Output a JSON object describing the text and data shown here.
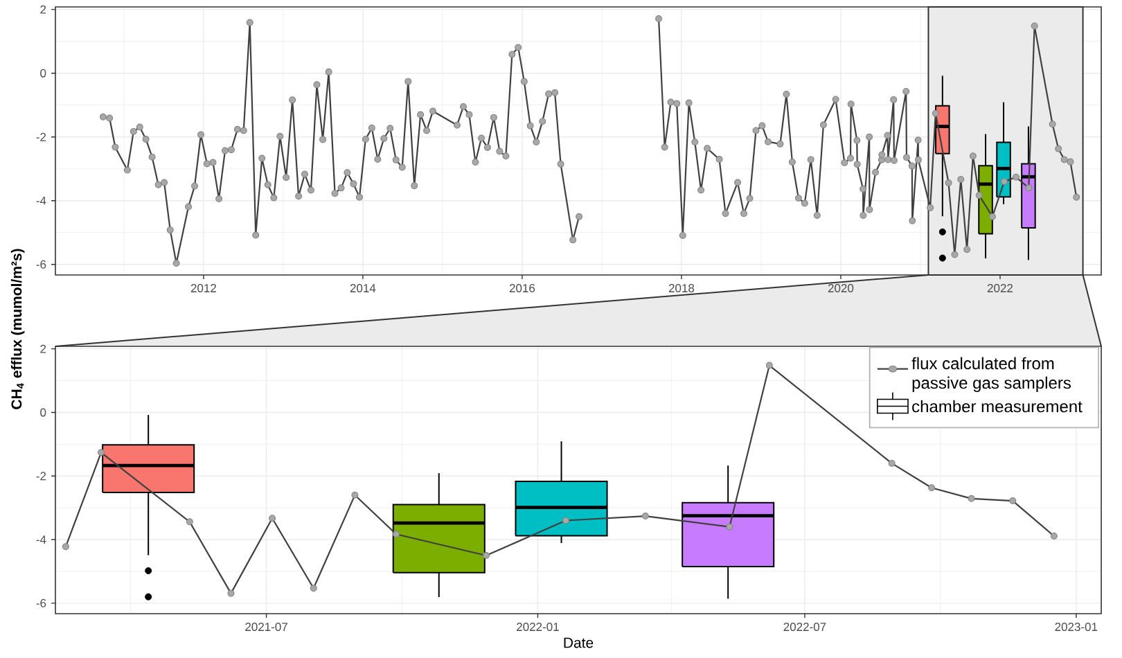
{
  "chart_data": [
    {
      "type": "line",
      "ylabel": "CH$_{4}$ efflux (mumol/m²s)",
      "xlim": [
        2010.14,
        2023.27
      ],
      "ylim": [
        -6.33,
        2.08
      ],
      "xticks": [
        2012,
        2014,
        2016,
        2018,
        2020,
        2022
      ],
      "yticks": [
        -6,
        -4,
        -2,
        0,
        2
      ],
      "grid": true,
      "marker": "circle",
      "bands": [
        {
          "axis": "x",
          "from": 2021.1,
          "to": 2023.04,
          "color": "#ebebeb"
        }
      ],
      "series": [
        {
          "color": "#404040",
          "x": [
            2010.739,
            2010.82,
            2010.891,
            2011.043,
            2011.121,
            2011.199,
            2011.276,
            2011.354,
            2011.432,
            2011.506,
            2011.581,
            2011.658,
            2011.81,
            2011.888,
            2011.966,
            2012.043,
            2012.118,
            2012.193,
            2012.27,
            2012.348,
            2012.425,
            2012.503,
            2012.581,
            2012.655,
            2012.733,
            2012.807,
            2012.882,
            2012.96,
            2013.037,
            2013.115,
            2013.193,
            2013.27,
            2013.348,
            2013.422,
            2013.497,
            2013.571,
            2013.649,
            2013.727,
            2013.804,
            2013.882,
            2013.957,
            2014.034,
            2014.112,
            2014.186,
            2014.264,
            2014.342,
            2014.416,
            2014.494,
            2014.568,
            2014.646,
            2014.724,
            2014.801,
            2014.879,
            2015.183,
            2015.261,
            2015.335,
            2015.413,
            2015.488,
            2015.565,
            2015.643,
            2015.717,
            2015.795,
            2015.873,
            2015.95,
            2016.025,
            2016.102,
            2016.177,
            2016.255,
            2016.332,
            2016.41,
            2016.484,
            2016.637,
            2016.714,
            2017.2,
            2017.714,
            2017.789,
            2017.866,
            2017.941,
            2018.016,
            2018.093,
            2018.168,
            2018.245,
            2018.323,
            2018.475,
            2018.553,
            2018.705,
            2018.783,
            2018.857,
            2018.935,
            2019.012,
            2019.087,
            2019.239,
            2019.317,
            2019.391,
            2019.469,
            2019.547,
            2019.624,
            2019.703,
            2019.782,
            2019.936,
            2020.047,
            2020.122,
            2020.128,
            2020.203,
            2020.206,
            2020.279,
            2020.282,
            2020.358,
            2020.36,
            2020.436,
            2020.512,
            2020.517,
            2020.587,
            2020.593,
            2020.663,
            2020.669,
            2020.82,
            2020.826,
            2020.895,
            2020.898,
            2020.971,
            2020.974,
            2021.123,
            2021.19,
            2021.353,
            2021.43,
            2021.507,
            2021.584,
            2021.66,
            2021.737,
            2021.904,
            2022.052,
            2022.2,
            2022.359,
            2022.432,
            2022.658,
            2022.732,
            2022.806,
            2022.882,
            2022.959
          ],
          "values": [
            -1.37,
            -1.41,
            -2.32,
            -3.04,
            -1.83,
            -1.69,
            -2.07,
            -2.63,
            -3.5,
            -3.43,
            -4.92,
            -5.96,
            -4.19,
            -3.54,
            -1.93,
            -2.84,
            -2.8,
            -3.94,
            -2.43,
            -2.4,
            -1.76,
            -1.8,
            1.59,
            -5.08,
            -2.67,
            -3.5,
            -3.91,
            -1.98,
            -3.27,
            -0.84,
            -3.86,
            -3.17,
            -3.67,
            -0.36,
            -2.08,
            0.04,
            -3.77,
            -3.6,
            -3.12,
            -3.47,
            -3.89,
            -2.07,
            -1.72,
            -2.7,
            -2.05,
            -1.73,
            -2.72,
            -2.95,
            -0.26,
            -3.53,
            -1.3,
            -1.8,
            -1.19,
            -1.63,
            -1.05,
            -1.3,
            -2.79,
            -2.04,
            -2.33,
            -1.39,
            -2.45,
            -2.6,
            0.59,
            0.81,
            -0.26,
            -1.65,
            -2.16,
            -1.51,
            -0.65,
            -0.61,
            -2.85,
            -5.23,
            -4.5,
            null,
            1.71,
            -2.32,
            -0.91,
            -0.95,
            -5.09,
            -0.93,
            -2.16,
            -3.67,
            -2.36,
            -2.7,
            -4.4,
            -3.43,
            -4.4,
            -3.93,
            -1.8,
            -1.65,
            -2.15,
            -2.22,
            -0.66,
            -2.79,
            -3.92,
            -4.08,
            -2.71,
            -4.46,
            -1.62,
            -0.82,
            -2.81,
            -2.67,
            -0.97,
            -2.11,
            -2.86,
            -3.63,
            -4.46,
            -2.0,
            -4.28,
            -3.11,
            -2.72,
            -2.56,
            -1.95,
            -2.71,
            -0.83,
            -2.74,
            -0.57,
            -2.64,
            -2.91,
            -4.63,
            -2.1,
            -2.72,
            -4.22,
            -1.26,
            -3.44,
            -5.69,
            -3.33,
            -5.53,
            -2.6,
            -3.83,
            -4.5,
            -3.4,
            -3.26,
            -3.6,
            1.48,
            -1.6,
            -2.37,
            -2.71,
            -2.78,
            -3.89
          ]
        },
        {
          "type": "box",
          "x": [
            2021.277,
            2021.818,
            2022.044,
            2022.356
          ],
          "colors": [
            "#f8766d",
            "#7cae00",
            "#00bfc4",
            "#c77cff"
          ],
          "boxes": [
            {
              "low": -4.49,
              "q1": -2.52,
              "median": -1.67,
              "q3": -1.02,
              "high": -0.08,
              "outliers": [
                -4.98,
                -5.8
              ]
            },
            {
              "low": -5.81,
              "q1": -5.04,
              "median": -3.48,
              "q3": -2.9,
              "high": -1.91
            },
            {
              "low": -4.11,
              "q1": -3.88,
              "median": -2.99,
              "q3": -2.17,
              "high": -0.91
            },
            {
              "low": -5.86,
              "q1": -4.85,
              "median": -3.25,
              "q3": -2.84,
              "high": -1.67
            }
          ]
        }
      ]
    },
    {
      "type": "line",
      "xlabel": "Date",
      "xlim": [
        "2021-02-08",
        "2023-01-18"
      ],
      "ylim": [
        -6.33,
        2.08
      ],
      "xticks": [
        {
          "value": "2021-07-01",
          "label": "2021-07"
        },
        {
          "value": "2022-01-01",
          "label": "2022-01"
        },
        {
          "value": "2022-07-01",
          "label": "2022-07"
        },
        {
          "value": "2023-01-01",
          "label": "2023-01"
        }
      ],
      "yticks": [
        -6,
        -4,
        -2,
        0,
        2
      ],
      "grid": true,
      "marker": "circle",
      "legend": "top right",
      "series": [
        {
          "name": "flux calculated from passive gas samplers",
          "color": "#404040",
          "x": [
            "2021-02-15",
            "2021-03-11",
            "2021-05-10",
            "2021-06-07",
            "2021-07-05",
            "2021-08-02",
            "2021-08-30",
            "2021-09-27",
            "2021-11-27",
            "2022-01-20",
            "2022-03-15",
            "2022-05-11",
            "2022-06-07",
            "2022-08-29",
            "2022-09-25",
            "2022-10-22",
            "2022-11-19",
            "2022-12-17"
          ],
          "values": [
            -4.22,
            -1.26,
            -3.44,
            -5.69,
            -3.33,
            -5.53,
            -2.6,
            -3.83,
            -4.5,
            -3.4,
            -3.26,
            -3.6,
            1.48,
            -1.6,
            -2.37,
            -2.71,
            -2.78,
            -3.89
          ]
        },
        {
          "type": "box",
          "name": "chamber measurement",
          "x": [
            "2021-04-12",
            "2021-10-26",
            "2022-01-17",
            "2022-05-10"
          ],
          "colors": [
            "#f8766d",
            "#7cae00",
            "#00bfc4",
            "#c77cff"
          ],
          "boxes": [
            {
              "low": -4.49,
              "q1": -2.52,
              "median": -1.67,
              "q3": -1.02,
              "high": -0.08,
              "outliers": [
                -4.98,
                -5.8
              ]
            },
            {
              "low": -5.81,
              "q1": -5.04,
              "median": -3.48,
              "q3": -2.9,
              "high": -1.91
            },
            {
              "low": -4.11,
              "q1": -3.88,
              "median": -2.99,
              "q3": -2.17,
              "high": -0.91
            },
            {
              "low": -5.86,
              "q1": -4.85,
              "median": -3.25,
              "q3": -2.84,
              "high": -1.67
            }
          ]
        }
      ]
    }
  ]
}
